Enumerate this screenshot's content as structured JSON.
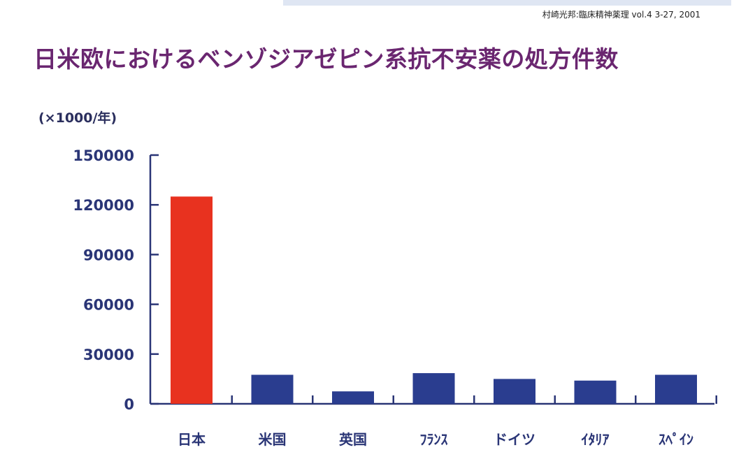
{
  "citation": "村崎光邦:臨床精神薬理 vol.4 3-27, 2001",
  "colors": {
    "title": "#6a2670",
    "axis": "#2a3576",
    "highlight_bar": "#e8321f",
    "bar": "#2a3d8f"
  },
  "chart_data": {
    "type": "bar",
    "title": "日米欧におけるベンゾジアゼピン系抗不安薬の処方件数",
    "ylabel": "(×1000/年)",
    "xlabel": "",
    "ylim": [
      0,
      150000
    ],
    "yticks": [
      {
        "value": 0,
        "label": "0"
      },
      {
        "value": 30000,
        "label": "30000"
      },
      {
        "value": 60000,
        "label": "60000"
      },
      {
        "value": 90000,
        "label": "90000"
      },
      {
        "value": 120000,
        "label": "120000"
      },
      {
        "value": 150000,
        "label": "150000"
      }
    ],
    "categories": [
      "日本",
      "米国",
      "英国",
      "ﾌﾗﾝｽ",
      "ドイツ",
      "ｲﾀﾘｱ",
      "ｽﾍﾟｲﾝ"
    ],
    "values": [
      125000,
      17500,
      7500,
      18500,
      15000,
      14000,
      17500
    ],
    "highlight_index": 0,
    "grid": false,
    "legend": "none"
  }
}
